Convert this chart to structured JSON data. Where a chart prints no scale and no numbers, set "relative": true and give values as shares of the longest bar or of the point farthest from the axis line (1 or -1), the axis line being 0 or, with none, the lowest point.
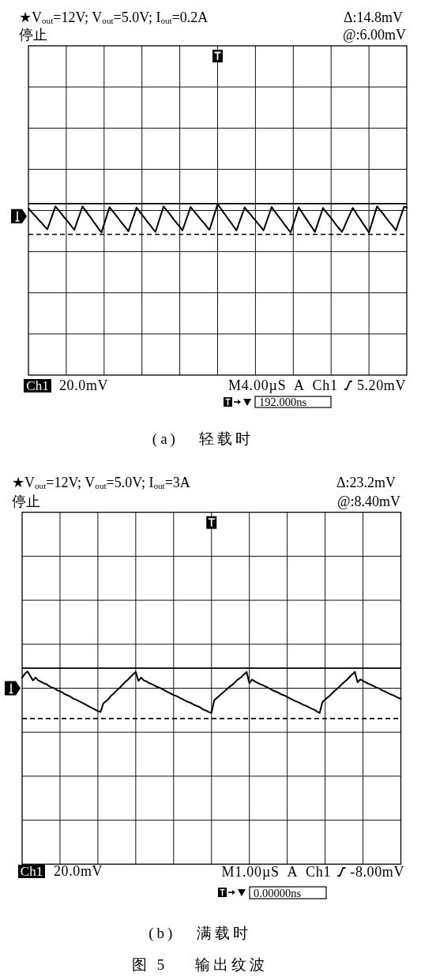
{
  "chart_data": [
    {
      "type": "line",
      "title": "★V$_{out}$=12V; V$_{out}$=5.0V; I$_{out}$=0.2A",
      "subtitle": "停止",
      "categories": [
        null,
        null,
        null,
        null,
        null,
        null,
        null,
        null,
        null,
        null,
        null,
        null,
        null,
        null,
        null,
        null,
        null,
        null,
        null,
        null,
        null,
        null,
        null,
        null,
        null,
        null,
        null,
        null,
        null,
        null,
        null,
        null,
        null,
        null,
        null,
        null,
        null,
        null,
        null,
        null,
        null,
        null,
        null,
        null,
        null,
        null,
        null,
        null,
        null,
        null,
        null,
        null,
        null,
        null,
        null,
        null,
        null,
        null,
        null,
        null,
        null,
        null,
        null,
        null,
        null,
        null,
        null,
        null,
        null,
        null,
        null,
        null,
        null,
        null,
        null,
        null,
        null,
        null,
        null,
        null,
        null,
        null,
        null,
        null,
        null,
        null,
        null,
        null,
        null,
        null,
        null,
        null,
        null,
        null,
        null,
        null,
        null,
        null,
        null,
        null,
        null,
        null,
        null,
        null,
        null,
        null,
        null,
        null,
        null,
        null,
        null,
        null,
        null,
        null,
        null,
        null,
        null,
        null,
        null,
        null,
        null,
        null,
        null,
        null,
        null,
        null,
        null,
        null,
        null,
        null,
        null,
        null,
        null,
        null,
        null,
        null,
        null,
        null,
        null,
        null,
        null
      ],
      "series": [
        {
          "color": "#000000",
          "values": [
            0.86,
            0.76,
            0.66,
            0.57,
            0.46,
            0.37,
            0.26,
            0.17,
            0.42,
            0.68,
            0.93,
            0.82,
            0.71,
            0.59,
            0.49,
            0.38,
            0.26,
            0.15,
            0.42,
            0.67,
            0.93,
            0.81,
            0.68,
            0.56,
            0.43,
            0.31,
            0.18,
            0.06,
            0.34,
            0.62,
            0.91,
            0.79,
            0.68,
            0.57,
            0.44,
            0.33,
            0.22,
            0.1,
            0.37,
            0.62,
            0.89,
            0.77,
            0.65,
            0.54,
            0.42,
            0.31,
            0.19,
            0.08,
            0.36,
            0.65,
            0.93,
            0.82,
            0.71,
            0.59,
            0.47,
            0.36,
            0.25,
            0.13,
            0.39,
            0.65,
            0.91,
            0.8,
            0.69,
            0.58,
            0.47,
            0.37,
            0.25,
            0.15,
            0.43,
            0.72,
            1.0,
            0.88,
            0.75,
            0.63,
            0.5,
            0.38,
            0.25,
            0.13,
            0.39,
            0.64,
            0.9,
            0.78,
            0.68,
            0.57,
            0.46,
            0.35,
            0.25,
            0.13,
            0.39,
            0.65,
            0.91,
            0.78,
            0.66,
            0.54,
            0.42,
            0.3,
            0.18,
            0.06,
            0.34,
            0.61,
            0.9,
            0.76,
            0.62,
            0.49,
            0.35,
            0.22,
            0.08,
            0.34,
            0.61,
            0.88,
            0.76,
            0.65,
            0.54,
            0.42,
            0.3,
            0.19,
            0.08,
            0.27,
            0.48,
            0.68,
            0.88,
            0.75,
            0.6,
            0.47,
            0.33,
            0.2,
            0.06,
            0.35,
            0.64,
            0.93,
            0.82,
            0.71,
            0.59,
            0.47,
            0.36,
            0.25,
            0.13,
            0.4,
            0.66,
            0.92,
            0.89
          ]
        }
      ],
      "relative": true,
      "grid": true,
      "ref_lines": [
        {
          "axis": "y",
          "value": 1.02,
          "line_style": "solid",
          "color": "#000000"
        },
        {
          "axis": "y",
          "value": 0,
          "line_style": "dashed",
          "color": "#000000"
        }
      ],
      "annotations": [
        "Δ:14.8mV",
        "@:6.00mV",
        "Ch1",
        "20.0mV",
        "M4.00µS  A  Ch1",
        "5.20mV",
        "192.000ns",
        "(a)   轻载时"
      ]
    },
    {
      "type": "line",
      "title": "★V$_{out}$=12V; V$_{out}$=5.0V; I$_{out}$=3A",
      "subtitle": "停止",
      "categories": [
        null,
        null,
        null,
        null,
        null,
        null,
        null,
        null,
        null,
        null,
        null,
        null,
        null,
        null,
        null,
        null,
        null,
        null,
        null,
        null,
        null,
        null,
        null,
        null,
        null,
        null,
        null,
        null,
        null,
        null,
        null,
        null,
        null,
        null,
        null,
        null,
        null,
        null,
        null,
        null,
        null,
        null,
        null,
        null,
        null,
        null,
        null,
        null,
        null,
        null,
        null,
        null,
        null,
        null,
        null,
        null,
        null,
        null,
        null,
        null,
        null,
        null,
        null,
        null,
        null,
        null,
        null,
        null,
        null,
        null,
        null,
        null,
        null,
        null,
        null,
        null,
        null,
        null,
        null,
        null,
        null,
        null,
        null,
        null,
        null,
        null,
        null,
        null,
        null,
        null,
        null,
        null,
        null,
        null,
        null,
        null,
        null,
        null,
        null,
        null,
        null,
        null,
        null,
        null,
        null,
        null,
        null,
        null,
        null,
        null,
        null,
        null,
        null,
        null,
        null,
        null,
        null,
        null,
        null,
        null,
        null,
        null,
        null,
        null,
        null,
        null,
        null,
        null,
        null,
        null,
        null,
        null,
        null,
        null,
        null,
        null,
        null,
        null,
        null,
        null,
        null
      ],
      "series": [
        {
          "color": "#000000",
          "values": [
            0.87,
            0.95,
            1.0,
            0.91,
            0.81,
            0.87,
            0.81,
            0.78,
            0.75,
            0.73,
            0.69,
            0.66,
            0.64,
            0.6,
            0.58,
            0.55,
            0.51,
            0.49,
            0.46,
            0.42,
            0.4,
            0.37,
            0.34,
            0.31,
            0.28,
            0.25,
            0.22,
            0.19,
            0.16,
            0.14,
            0.32,
            0.37,
            0.42,
            0.49,
            0.54,
            0.6,
            0.65,
            0.71,
            0.77,
            0.82,
            0.88,
            0.94,
            0.99,
            0.8,
            0.87,
            0.81,
            0.79,
            0.75,
            0.73,
            0.7,
            0.67,
            0.65,
            0.62,
            0.59,
            0.56,
            0.53,
            0.5,
            0.48,
            0.45,
            0.42,
            0.39,
            0.36,
            0.34,
            0.31,
            0.28,
            0.26,
            0.23,
            0.19,
            0.17,
            0.14,
            0.12,
            0.39,
            0.44,
            0.49,
            0.54,
            0.59,
            0.64,
            0.69,
            0.73,
            0.79,
            0.84,
            0.88,
            0.94,
            0.99,
            0.75,
            0.83,
            0.79,
            0.76,
            0.73,
            0.71,
            0.68,
            0.65,
            0.62,
            0.59,
            0.57,
            0.54,
            0.51,
            0.49,
            0.46,
            0.43,
            0.4,
            0.37,
            0.35,
            0.32,
            0.29,
            0.27,
            0.24,
            0.21,
            0.19,
            0.15,
            0.12,
            0.35,
            0.4,
            0.45,
            0.5,
            0.56,
            0.61,
            0.66,
            0.72,
            0.77,
            0.82,
            0.88,
            0.94,
            0.99,
            0.77,
            0.83,
            0.8,
            0.77,
            0.74,
            0.72,
            0.69,
            0.66,
            0.64,
            0.6,
            0.58,
            0.55,
            0.52,
            0.5,
            0.47,
            0.44,
            0.42
          ]
        }
      ],
      "relative": true,
      "grid": true,
      "ref_lines": [
        {
          "axis": "y",
          "value": 1.07,
          "line_style": "solid",
          "color": "#000000"
        },
        {
          "axis": "y",
          "value": 0,
          "line_style": "dashed",
          "color": "#000000"
        }
      ],
      "annotations": [
        "Δ:23.2mV",
        "@:8.40mV",
        "Ch1",
        "20.0mV",
        "M1.00µS  A  Ch1",
        "-8.00mV",
        "0.00000ns",
        "(b)   满载时",
        "图 5    输出纹波"
      ]
    }
  ]
}
